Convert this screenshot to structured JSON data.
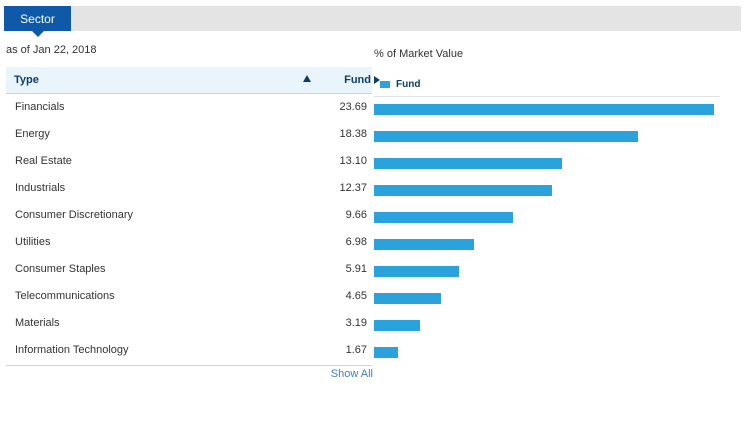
{
  "tab": {
    "label": "Sector"
  },
  "as_of": "as of Jan 22, 2018",
  "chart_title": "% of Market Value",
  "table": {
    "columns": {
      "type": "Type",
      "fund": "Fund"
    },
    "rows": [
      {
        "type": "Financials",
        "fund": "23.69"
      },
      {
        "type": "Energy",
        "fund": "18.38"
      },
      {
        "type": "Real Estate",
        "fund": "13.10"
      },
      {
        "type": "Industrials",
        "fund": "12.37"
      },
      {
        "type": "Consumer Discretionary",
        "fund": "9.66"
      },
      {
        "type": "Utilities",
        "fund": "6.98"
      },
      {
        "type": "Consumer Staples",
        "fund": "5.91"
      },
      {
        "type": "Telecommunications",
        "fund": "4.65"
      },
      {
        "type": "Materials",
        "fund": "3.19"
      },
      {
        "type": "Information Technology",
        "fund": "1.67"
      }
    ],
    "show_all": "Show All"
  },
  "chart_data": {
    "type": "bar",
    "orientation": "horizontal",
    "title": "% of Market Value",
    "categories": [
      "Financials",
      "Energy",
      "Real Estate",
      "Industrials",
      "Consumer Discretionary",
      "Utilities",
      "Consumer Staples",
      "Telecommunications",
      "Materials",
      "Information Technology"
    ],
    "series": [
      {
        "name": "Fund",
        "values": [
          23.69,
          18.38,
          13.1,
          12.37,
          9.66,
          6.98,
          5.91,
          4.65,
          3.19,
          1.67
        ],
        "color": "#2aa3dd"
      }
    ],
    "legend": "top-left",
    "grid": false
  },
  "colors": {
    "accent": "#0e5aa8",
    "bar": "#2aa3dd",
    "header_bg": "#eaf4fb",
    "link": "#3a7fc0"
  }
}
